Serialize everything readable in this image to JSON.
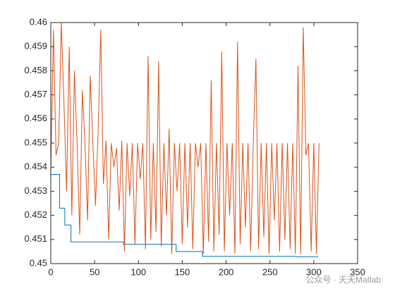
{
  "chart_data": {
    "type": "line",
    "xlim": [
      0,
      350
    ],
    "xticks": [
      0,
      50,
      100,
      150,
      200,
      250,
      300,
      350
    ],
    "ylim": [
      0.45,
      0.46
    ],
    "yticks": [
      0.45,
      0.451,
      0.452,
      0.453,
      0.454,
      0.455,
      0.456,
      0.457,
      0.458,
      0.459,
      0.46
    ],
    "annotation": "公众号 · 天天Matlab",
    "series": [
      {
        "color": "#0072bd",
        "x": [
          0,
          10,
          10,
          16,
          16,
          23,
          23,
          83,
          83,
          143,
          143,
          173,
          173,
          280,
          280,
          305
        ],
        "values": [
          0.4537,
          0.4537,
          0.4523,
          0.4523,
          0.4516,
          0.4516,
          0.4509,
          0.4509,
          0.4508,
          0.4508,
          0.4505,
          0.4505,
          0.4503,
          0.4503,
          0.45028,
          0.45028
        ]
      },
      {
        "color": "#d95319",
        "x": [
          0,
          3,
          6,
          9,
          12,
          15,
          18,
          21,
          24,
          27,
          30,
          33,
          36,
          39,
          42,
          45,
          48,
          51,
          54,
          57,
          60,
          63,
          66,
          69,
          72,
          75,
          78,
          81,
          84,
          87,
          90,
          93,
          96,
          99,
          102,
          105,
          108,
          111,
          114,
          117,
          120,
          123,
          126,
          129,
          132,
          135,
          138,
          141,
          144,
          147,
          150,
          153,
          156,
          159,
          162,
          165,
          168,
          171,
          174,
          177,
          180,
          183,
          186,
          189,
          192,
          195,
          198,
          201,
          204,
          207,
          210,
          213,
          216,
          219,
          222,
          225,
          228,
          231,
          234,
          237,
          240,
          243,
          246,
          249,
          252,
          255,
          258,
          261,
          264,
          267,
          270,
          273,
          276,
          279,
          282,
          285,
          288,
          291,
          294,
          297,
          300,
          303,
          306
        ],
        "values": [
          0.4537,
          0.4597,
          0.4545,
          0.455,
          0.46,
          0.4567,
          0.453,
          0.459,
          0.452,
          0.458,
          0.455,
          0.4512,
          0.4572,
          0.455,
          0.4518,
          0.4578,
          0.455,
          0.4524,
          0.4555,
          0.4597,
          0.4533,
          0.4551,
          0.451,
          0.455,
          0.454,
          0.4548,
          0.4522,
          0.4551,
          0.4505,
          0.455,
          0.4528,
          0.455,
          0.4508,
          0.455,
          0.4535,
          0.455,
          0.4506,
          0.4586,
          0.451,
          0.455,
          0.4513,
          0.4584,
          0.4507,
          0.455,
          0.452,
          0.4556,
          0.4504,
          0.455,
          0.453,
          0.455,
          0.4508,
          0.455,
          0.4515,
          0.455,
          0.4506,
          0.455,
          0.454,
          0.455,
          0.4504,
          0.455,
          0.4509,
          0.4576,
          0.4505,
          0.455,
          0.4512,
          0.4588,
          0.4505,
          0.455,
          0.452,
          0.455,
          0.4504,
          0.4592,
          0.4508,
          0.455,
          0.4515,
          0.455,
          0.4505,
          0.455,
          0.4585,
          0.4506,
          0.455,
          0.4511,
          0.455,
          0.4504,
          0.455,
          0.4518,
          0.455,
          0.4505,
          0.455,
          0.451,
          0.455,
          0.4506,
          0.455,
          0.4504,
          0.4582,
          0.4504,
          0.4598,
          0.4545,
          0.455,
          0.4505,
          0.455,
          0.4504,
          0.455
        ]
      }
    ]
  }
}
